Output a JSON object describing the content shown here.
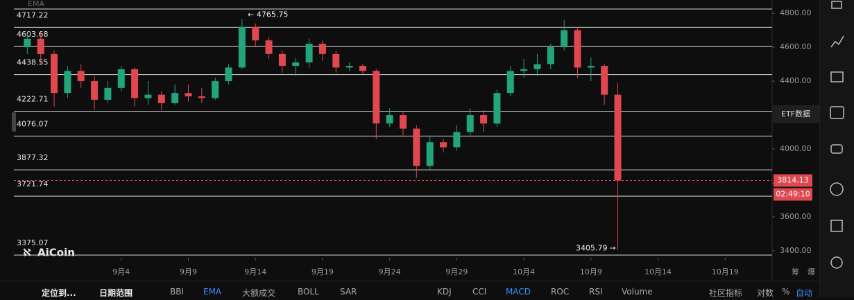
{
  "chart_data": {
    "type": "candlestick",
    "legend_label": "EMA",
    "watermark": "AiCoin",
    "x": [
      -3,
      -2,
      -1,
      0,
      1,
      2,
      3,
      4,
      5,
      6,
      7,
      8,
      9,
      10,
      11,
      12,
      13,
      14,
      15,
      16,
      17,
      18,
      19,
      20,
      21,
      22,
      23,
      24,
      25,
      26,
      27,
      28,
      29,
      30,
      31,
      32,
      33,
      34,
      35,
      36,
      37,
      38,
      39,
      40,
      41
    ],
    "open": [
      4600,
      4650,
      4560,
      4330,
      4460,
      4400,
      4290,
      4360,
      4470,
      4300,
      4320,
      4270,
      4330,
      4310,
      4300,
      4400,
      4480,
      4720,
      4640,
      4560,
      4490,
      4510,
      4620,
      4560,
      4480,
      4490,
      4460,
      4150,
      4200,
      4120,
      3900,
      4040,
      4010,
      4100,
      4200,
      4150,
      4330,
      4460,
      4470,
      4500,
      4600,
      4700,
      4480,
      4490,
      4320
    ],
    "high": [
      4680,
      4690,
      4580,
      4490,
      4500,
      4430,
      4400,
      4490,
      4480,
      4400,
      4340,
      4380,
      4380,
      4360,
      4420,
      4500,
      4765.75,
      4740,
      4660,
      4580,
      4540,
      4650,
      4640,
      4580,
      4510,
      4500,
      4470,
      4240,
      4220,
      4140,
      4080,
      4060,
      4140,
      4240,
      4230,
      4350,
      4490,
      4530,
      4560,
      4620,
      4760,
      4720,
      4540,
      4500,
      4390
    ],
    "low": [
      4560,
      4500,
      4250,
      4300,
      4360,
      4230,
      4270,
      4340,
      4250,
      4260,
      4230,
      4260,
      4280,
      4270,
      4290,
      4380,
      4470,
      4600,
      4530,
      4450,
      4430,
      4480,
      4520,
      4450,
      4460,
      4440,
      4060,
      4130,
      4080,
      3830,
      3880,
      3980,
      3990,
      4080,
      4100,
      4130,
      4310,
      4420,
      4430,
      4470,
      4580,
      4420,
      4400,
      4260,
      3405.79
    ],
    "close": [
      4650,
      4560,
      4330,
      4460,
      4400,
      4290,
      4360,
      4470,
      4300,
      4320,
      4270,
      4330,
      4310,
      4300,
      4400,
      4480,
      4720,
      4640,
      4560,
      4490,
      4510,
      4620,
      4560,
      4480,
      4490,
      4460,
      4150,
      4200,
      4120,
      3900,
      4040,
      4010,
      4100,
      4200,
      4150,
      4330,
      4460,
      4470,
      4500,
      4600,
      4700,
      4480,
      4490,
      4320,
      3814.13
    ],
    "up_color": "#22a57a",
    "down_color": "#e0474e",
    "xlim": [
      -4,
      52.5
    ],
    "xticks": [
      {
        "value": 4,
        "label": "9月4"
      },
      {
        "value": 9,
        "label": "9月9"
      },
      {
        "value": 14,
        "label": "9月14"
      },
      {
        "value": 19,
        "label": "9月19"
      },
      {
        "value": 24,
        "label": "9月24"
      },
      {
        "value": 29,
        "label": "9月29"
      },
      {
        "value": 34,
        "label": "10月4"
      },
      {
        "value": 39,
        "label": "10月9"
      },
      {
        "value": 44,
        "label": "10月14"
      },
      {
        "value": 49,
        "label": "10月19"
      }
    ],
    "ylim": [
      3359,
      4878
    ],
    "yticks": [
      {
        "value": 3400,
        "label": "3400.00"
      },
      {
        "value": 3600,
        "label": "3600.00"
      },
      {
        "value": 3800,
        "label": "3800.00"
      },
      {
        "value": 4000,
        "label": "4000.00"
      },
      {
        "value": 4200,
        "label": "4200.00"
      },
      {
        "value": 4400,
        "label": "4400.00"
      },
      {
        "value": 4600,
        "label": "4600.00"
      },
      {
        "value": 4800,
        "label": "4800.00"
      }
    ],
    "price_levels": [
      4717.22,
      4603.68,
      4438.55,
      4222.71,
      4076.07,
      3877.32,
      3721.74,
      3375.07
    ],
    "countdown": "02:49:10",
    "axis_extra": [
      "筹",
      "爆"
    ]
  },
  "toolbar": {
    "left": [
      "定位到...",
      "日期范围"
    ],
    "indicators": [
      {
        "label": "BBI",
        "active": false
      },
      {
        "label": "EMA",
        "active": true
      },
      {
        "label": "大额成交",
        "active": false
      },
      {
        "label": "BOLL",
        "active": false
      },
      {
        "label": "SAR",
        "active": false
      },
      {
        "label": "KDJ",
        "active": false
      },
      {
        "label": "CCI",
        "active": false
      },
      {
        "label": "MACD",
        "active": true
      },
      {
        "label": "ROC",
        "active": false
      },
      {
        "label": "RSI",
        "active": false
      },
      {
        "label": "Volume",
        "active": false
      }
    ],
    "right": [
      {
        "label": "社区指标",
        "active": false
      },
      {
        "label": "对数",
        "active": false
      },
      {
        "label": "%",
        "active": false
      },
      {
        "label": "自动",
        "active": true
      }
    ]
  },
  "sidebar": {
    "tooltip": "ETF数据"
  }
}
